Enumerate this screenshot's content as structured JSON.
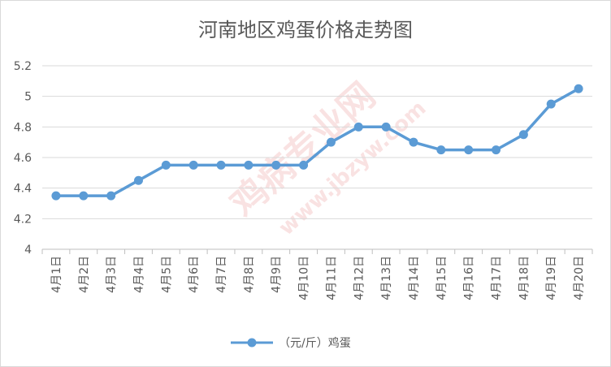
{
  "chart_data": {
    "type": "line",
    "title": "河南地区鸡蛋价格走势图",
    "categories": [
      "4月1日",
      "4月2日",
      "4月3日",
      "4月4日",
      "4月5日",
      "4月6日",
      "4月7日",
      "4月8日",
      "4月9日",
      "4月10日",
      "4月11日",
      "4月12日",
      "4月13日",
      "4月14日",
      "4月15日",
      "4月16日",
      "4月17日",
      "4月18日",
      "4月19日",
      "4月20日"
    ],
    "series": [
      {
        "name": "（元/斤）鸡蛋",
        "values": [
          4.35,
          4.35,
          4.35,
          4.45,
          4.55,
          4.55,
          4.55,
          4.55,
          4.55,
          4.55,
          4.7,
          4.8,
          4.8,
          4.7,
          4.65,
          4.65,
          4.65,
          4.75,
          4.95,
          5.05
        ],
        "color": "#5b9bd5"
      }
    ],
    "y_ticks": [
      "4",
      "4.2",
      "4.4",
      "4.6",
      "4.8",
      "5",
      "5.2"
    ],
    "ylim": [
      4,
      5.2
    ],
    "grid": true,
    "legend_position": "bottom"
  },
  "watermark": {
    "text_cn": "鸡病专业网",
    "text_url": "www.jbzyw.com"
  }
}
